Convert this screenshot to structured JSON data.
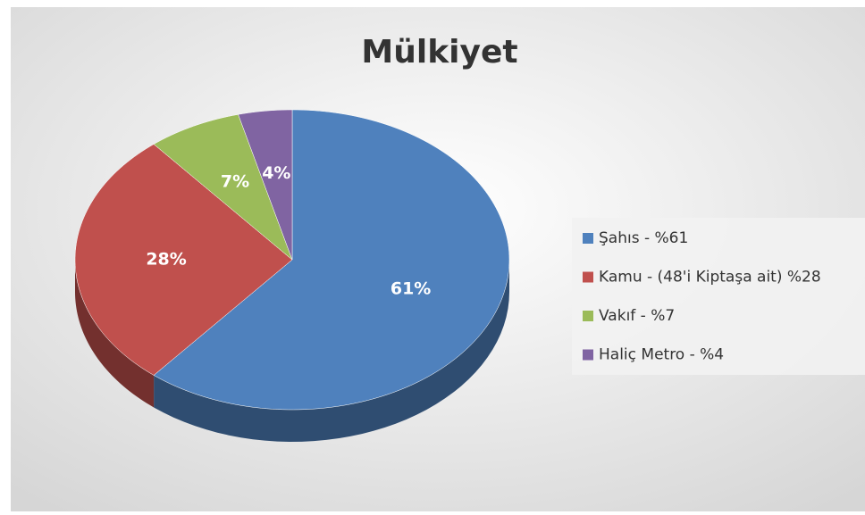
{
  "chart_data": {
    "type": "pie",
    "title": "Mülkiyet",
    "categories": [
      "Şahıs - %61",
      "Kamu - (48'i Kiptaşa ait) %28",
      "Vakıf - %7",
      "Haliç Metro - %4"
    ],
    "values": [
      61,
      28,
      7,
      4
    ],
    "value_labels": [
      "61%",
      "28%",
      "7%",
      "4%"
    ],
    "colors": [
      "#4f81bd",
      "#c0504d",
      "#9bbb59",
      "#8064a2"
    ],
    "legend": "right"
  }
}
